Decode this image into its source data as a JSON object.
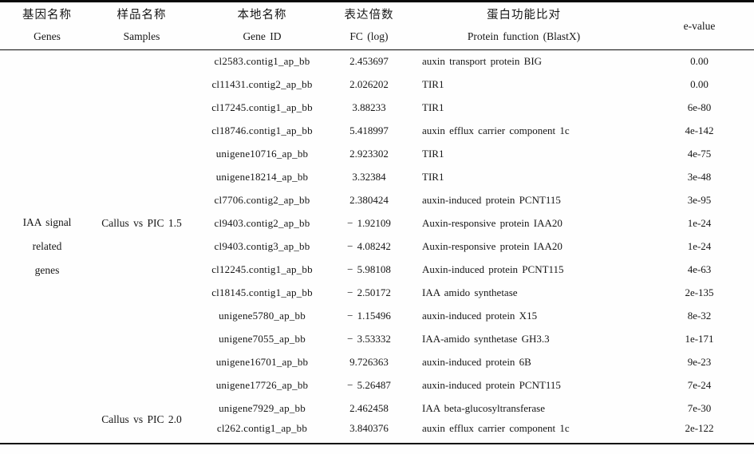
{
  "table": {
    "header": {
      "cols": [
        {
          "zh": "基因名称",
          "en": "Genes"
        },
        {
          "zh": "样品名称",
          "en": "Samples"
        },
        {
          "zh": "本地名称",
          "en": "Gene ID"
        },
        {
          "zh": "表达倍数",
          "en": "FC (log)"
        },
        {
          "zh": "蛋白功能比对",
          "en": "Protein function (BlastX)"
        },
        {
          "en": "e-value"
        }
      ]
    },
    "gene_group": {
      "lines": [
        "IAA signal",
        "related",
        "genes"
      ]
    },
    "sample_groups": [
      {
        "label": "Callus vs PIC 1.5",
        "rows": 15
      },
      {
        "label": "Callus vs PIC 2.0",
        "rows": 2
      }
    ],
    "rows": [
      {
        "gene_id": "cl2583.contig1_ap_bb",
        "fc": "2.453697",
        "protein": "auxin transport protein BIG",
        "evalue": "0.00"
      },
      {
        "gene_id": "cl11431.contig2_ap_bb",
        "fc": "2.026202",
        "protein": "TIR1",
        "evalue": "0.00"
      },
      {
        "gene_id": "cl17245.contig1_ap_bb",
        "fc": "3.88233",
        "protein": "TIR1",
        "evalue": "6e-80"
      },
      {
        "gene_id": "cl18746.contig1_ap_bb",
        "fc": "5.418997",
        "protein": "auxin efflux carrier component 1c",
        "evalue": "4e-142"
      },
      {
        "gene_id": "unigene10716_ap_bb",
        "fc": "2.923302",
        "protein": "TIR1",
        "evalue": "4e-75"
      },
      {
        "gene_id": "unigene18214_ap_bb",
        "fc": "3.32384",
        "protein": "TIR1",
        "evalue": "3e-48"
      },
      {
        "gene_id": "cl7706.contig2_ap_bb",
        "fc": "2.380424",
        "protein": "auxin-induced protein PCNT115",
        "evalue": "3e-95"
      },
      {
        "gene_id": "cl9403.contig2_ap_bb",
        "fc": "− 1.92109",
        "protein": "Auxin-responsive protein IAA20",
        "evalue": "1e-24"
      },
      {
        "gene_id": "cl9403.contig3_ap_bb",
        "fc": "− 4.08242",
        "protein": "Auxin-responsive protein IAA20",
        "evalue": "1e-24"
      },
      {
        "gene_id": "cl12245.contig1_ap_bb",
        "fc": "− 5.98108",
        "protein": "Auxin-induced protein PCNT115",
        "evalue": "4e-63"
      },
      {
        "gene_id": "cl18145.contig1_ap_bb",
        "fc": "− 2.50172",
        "protein": "IAA amido synthetase",
        "evalue": "2e-135"
      },
      {
        "gene_id": "unigene5780_ap_bb",
        "fc": "− 1.15496",
        "protein": "auxin-induced protein X15",
        "evalue": "8e-32"
      },
      {
        "gene_id": "unigene7055_ap_bb",
        "fc": "− 3.53332",
        "protein": "IAA-amido synthetase GH3.3",
        "evalue": "1e-171"
      },
      {
        "gene_id": "unigene16701_ap_bb",
        "fc": "9.726363",
        "protein": "auxin-induced protein 6B",
        "evalue": "9e-23"
      },
      {
        "gene_id": "unigene17726_ap_bb",
        "fc": "− 5.26487",
        "protein": "auxin-induced protein PCNT115",
        "evalue": "7e-24"
      },
      {
        "gene_id": "unigene7929_ap_bb",
        "fc": "2.462458",
        "protein": "IAA beta-glucosyltransferase",
        "evalue": "7e-30"
      },
      {
        "gene_id": "cl262.contig1_ap_bb",
        "fc": "3.840376",
        "protein": "auxin efflux carrier component 1c",
        "evalue": "2e-122"
      }
    ]
  }
}
